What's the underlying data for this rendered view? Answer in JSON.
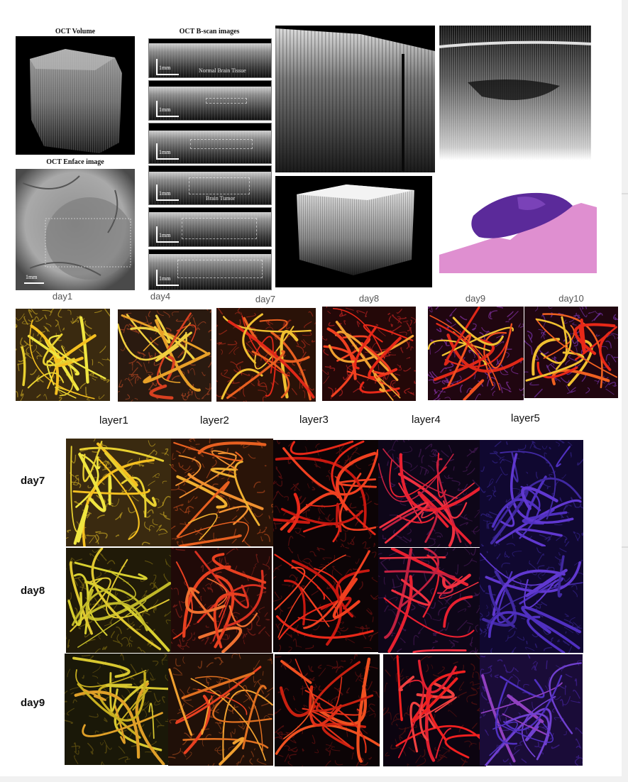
{
  "oct_panel": {
    "volume_title": "OCT Volume",
    "bscan_title": "OCT B-scan images",
    "enface_title": "OCT Enface image",
    "scale_label": "1mm",
    "normal_label": "Normal Brain Tissue",
    "tumor_label": "Brain Tumor"
  },
  "timeline_days": [
    "day1",
    "day4",
    "day7",
    "day8",
    "day9",
    "day10"
  ],
  "layers": [
    "layer1",
    "layer2",
    "layer3",
    "layer4",
    "layer5"
  ],
  "grid_days": [
    "day7",
    "day8",
    "day9"
  ],
  "colors": {
    "layer1": "#e8e03a",
    "layer2": "#f0a030",
    "layer3": "#e83020",
    "layer4": "#d8203c",
    "layer5": "#5030d8"
  }
}
